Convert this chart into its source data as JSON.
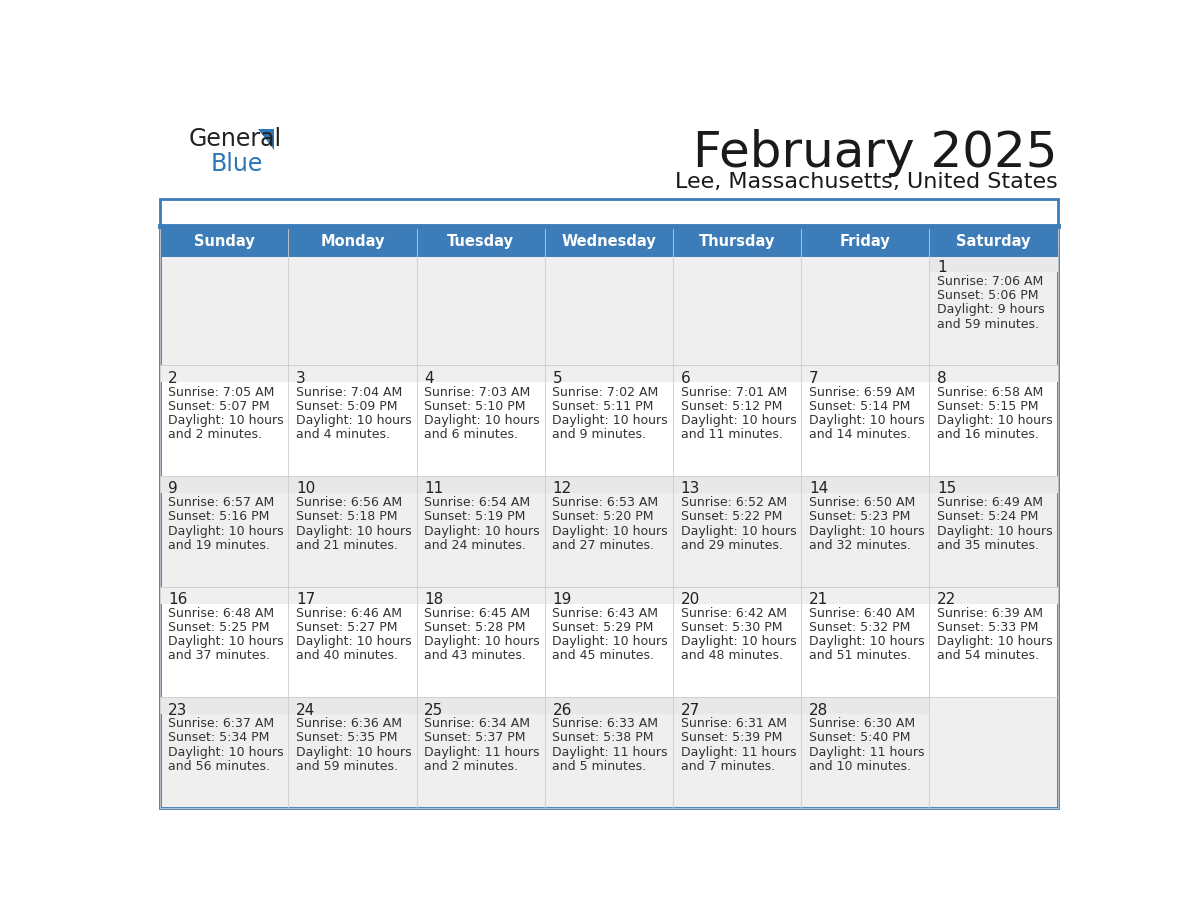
{
  "title": "February 2025",
  "subtitle": "Lee, Massachusetts, United States",
  "header_color": "#3C7CB8",
  "header_text_color": "#FFFFFF",
  "day_names": [
    "Sunday",
    "Monday",
    "Tuesday",
    "Wednesday",
    "Thursday",
    "Friday",
    "Saturday"
  ],
  "bg_color": "#FFFFFF",
  "row0_color": "#EFEFEF",
  "row_even_color": "#EFEFEF",
  "row_odd_color": "#FFFFFF",
  "border_color": "#3C7CB8",
  "grid_color": "#AAAAAA",
  "day_num_color": "#222222",
  "info_color": "#333333",
  "days": [
    {
      "day": 1,
      "col": 6,
      "row": 0,
      "sunrise": "7:06 AM",
      "sunset": "5:06 PM",
      "daylight_line1": "Daylight: 9 hours",
      "daylight_line2": "and 59 minutes."
    },
    {
      "day": 2,
      "col": 0,
      "row": 1,
      "sunrise": "7:05 AM",
      "sunset": "5:07 PM",
      "daylight_line1": "Daylight: 10 hours",
      "daylight_line2": "and 2 minutes."
    },
    {
      "day": 3,
      "col": 1,
      "row": 1,
      "sunrise": "7:04 AM",
      "sunset": "5:09 PM",
      "daylight_line1": "Daylight: 10 hours",
      "daylight_line2": "and 4 minutes."
    },
    {
      "day": 4,
      "col": 2,
      "row": 1,
      "sunrise": "7:03 AM",
      "sunset": "5:10 PM",
      "daylight_line1": "Daylight: 10 hours",
      "daylight_line2": "and 6 minutes."
    },
    {
      "day": 5,
      "col": 3,
      "row": 1,
      "sunrise": "7:02 AM",
      "sunset": "5:11 PM",
      "daylight_line1": "Daylight: 10 hours",
      "daylight_line2": "and 9 minutes."
    },
    {
      "day": 6,
      "col": 4,
      "row": 1,
      "sunrise": "7:01 AM",
      "sunset": "5:12 PM",
      "daylight_line1": "Daylight: 10 hours",
      "daylight_line2": "and 11 minutes."
    },
    {
      "day": 7,
      "col": 5,
      "row": 1,
      "sunrise": "6:59 AM",
      "sunset": "5:14 PM",
      "daylight_line1": "Daylight: 10 hours",
      "daylight_line2": "and 14 minutes."
    },
    {
      "day": 8,
      "col": 6,
      "row": 1,
      "sunrise": "6:58 AM",
      "sunset": "5:15 PM",
      "daylight_line1": "Daylight: 10 hours",
      "daylight_line2": "and 16 minutes."
    },
    {
      "day": 9,
      "col": 0,
      "row": 2,
      "sunrise": "6:57 AM",
      "sunset": "5:16 PM",
      "daylight_line1": "Daylight: 10 hours",
      "daylight_line2": "and 19 minutes."
    },
    {
      "day": 10,
      "col": 1,
      "row": 2,
      "sunrise": "6:56 AM",
      "sunset": "5:18 PM",
      "daylight_line1": "Daylight: 10 hours",
      "daylight_line2": "and 21 minutes."
    },
    {
      "day": 11,
      "col": 2,
      "row": 2,
      "sunrise": "6:54 AM",
      "sunset": "5:19 PM",
      "daylight_line1": "Daylight: 10 hours",
      "daylight_line2": "and 24 minutes."
    },
    {
      "day": 12,
      "col": 3,
      "row": 2,
      "sunrise": "6:53 AM",
      "sunset": "5:20 PM",
      "daylight_line1": "Daylight: 10 hours",
      "daylight_line2": "and 27 minutes."
    },
    {
      "day": 13,
      "col": 4,
      "row": 2,
      "sunrise": "6:52 AM",
      "sunset": "5:22 PM",
      "daylight_line1": "Daylight: 10 hours",
      "daylight_line2": "and 29 minutes."
    },
    {
      "day": 14,
      "col": 5,
      "row": 2,
      "sunrise": "6:50 AM",
      "sunset": "5:23 PM",
      "daylight_line1": "Daylight: 10 hours",
      "daylight_line2": "and 32 minutes."
    },
    {
      "day": 15,
      "col": 6,
      "row": 2,
      "sunrise": "6:49 AM",
      "sunset": "5:24 PM",
      "daylight_line1": "Daylight: 10 hours",
      "daylight_line2": "and 35 minutes."
    },
    {
      "day": 16,
      "col": 0,
      "row": 3,
      "sunrise": "6:48 AM",
      "sunset": "5:25 PM",
      "daylight_line1": "Daylight: 10 hours",
      "daylight_line2": "and 37 minutes."
    },
    {
      "day": 17,
      "col": 1,
      "row": 3,
      "sunrise": "6:46 AM",
      "sunset": "5:27 PM",
      "daylight_line1": "Daylight: 10 hours",
      "daylight_line2": "and 40 minutes."
    },
    {
      "day": 18,
      "col": 2,
      "row": 3,
      "sunrise": "6:45 AM",
      "sunset": "5:28 PM",
      "daylight_line1": "Daylight: 10 hours",
      "daylight_line2": "and 43 minutes."
    },
    {
      "day": 19,
      "col": 3,
      "row": 3,
      "sunrise": "6:43 AM",
      "sunset": "5:29 PM",
      "daylight_line1": "Daylight: 10 hours",
      "daylight_line2": "and 45 minutes."
    },
    {
      "day": 20,
      "col": 4,
      "row": 3,
      "sunrise": "6:42 AM",
      "sunset": "5:30 PM",
      "daylight_line1": "Daylight: 10 hours",
      "daylight_line2": "and 48 minutes."
    },
    {
      "day": 21,
      "col": 5,
      "row": 3,
      "sunrise": "6:40 AM",
      "sunset": "5:32 PM",
      "daylight_line1": "Daylight: 10 hours",
      "daylight_line2": "and 51 minutes."
    },
    {
      "day": 22,
      "col": 6,
      "row": 3,
      "sunrise": "6:39 AM",
      "sunset": "5:33 PM",
      "daylight_line1": "Daylight: 10 hours",
      "daylight_line2": "and 54 minutes."
    },
    {
      "day": 23,
      "col": 0,
      "row": 4,
      "sunrise": "6:37 AM",
      "sunset": "5:34 PM",
      "daylight_line1": "Daylight: 10 hours",
      "daylight_line2": "and 56 minutes."
    },
    {
      "day": 24,
      "col": 1,
      "row": 4,
      "sunrise": "6:36 AM",
      "sunset": "5:35 PM",
      "daylight_line1": "Daylight: 10 hours",
      "daylight_line2": "and 59 minutes."
    },
    {
      "day": 25,
      "col": 2,
      "row": 4,
      "sunrise": "6:34 AM",
      "sunset": "5:37 PM",
      "daylight_line1": "Daylight: 11 hours",
      "daylight_line2": "and 2 minutes."
    },
    {
      "day": 26,
      "col": 3,
      "row": 4,
      "sunrise": "6:33 AM",
      "sunset": "5:38 PM",
      "daylight_line1": "Daylight: 11 hours",
      "daylight_line2": "and 5 minutes."
    },
    {
      "day": 27,
      "col": 4,
      "row": 4,
      "sunrise": "6:31 AM",
      "sunset": "5:39 PM",
      "daylight_line1": "Daylight: 11 hours",
      "daylight_line2": "and 7 minutes."
    },
    {
      "day": 28,
      "col": 5,
      "row": 4,
      "sunrise": "6:30 AM",
      "sunset": "5:40 PM",
      "daylight_line1": "Daylight: 11 hours",
      "daylight_line2": "and 10 minutes."
    }
  ],
  "num_rows": 5,
  "header_fontsize": 10.5,
  "day_num_fontsize": 11,
  "info_fontsize": 9.0,
  "title_fontsize": 36,
  "subtitle_fontsize": 16
}
